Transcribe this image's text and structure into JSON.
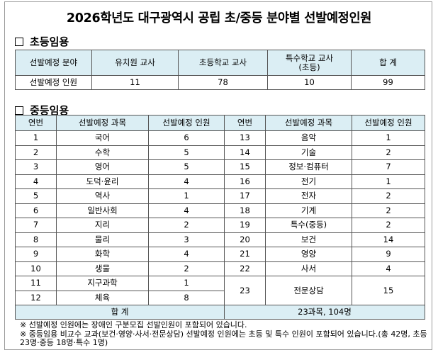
{
  "title": "2026학년도 대구광역시 공립 초/중등 분야별 선발예정인원",
  "elementary": {
    "heading": "초등임용",
    "header": [
      "선발예정 분야",
      "유치원 교사",
      "초등학교 교사",
      "특수학교 교사",
      "(초등)",
      "합 계"
    ],
    "row": [
      "선발예정 인원",
      "11",
      "78",
      "10",
      "99"
    ]
  },
  "secondary": {
    "heading": "중등임용",
    "header": [
      "연번",
      "선발예정 과목",
      "선발예정 인원",
      "연번",
      "선발예정 과목",
      "선발예정 인원"
    ],
    "left_rows": [
      [
        "1",
        "국어",
        "6"
      ],
      [
        "2",
        "수학",
        "5"
      ],
      [
        "3",
        "영어",
        "5"
      ],
      [
        "4",
        "도덕·윤리",
        "4"
      ],
      [
        "5",
        "역사",
        "1"
      ],
      [
        "6",
        "일반사회",
        "4"
      ],
      [
        "7",
        "지리",
        "2"
      ],
      [
        "8",
        "물리",
        "3"
      ],
      [
        "9",
        "화학",
        "4"
      ],
      [
        "10",
        "생물",
        "2"
      ],
      [
        "11",
        "지구과학",
        "1"
      ],
      [
        "12",
        "체육",
        "8"
      ]
    ],
    "right_rows": [
      [
        "13",
        "음악",
        "1"
      ],
      [
        "14",
        "기술",
        "2"
      ],
      [
        "15",
        "정보·컴퓨터",
        "7"
      ],
      [
        "16",
        "전기",
        "1"
      ],
      [
        "17",
        "전자",
        "2"
      ],
      [
        "18",
        "기계",
        "2"
      ],
      [
        "19",
        "특수(중등)",
        "2"
      ],
      [
        "20",
        "보건",
        "14"
      ],
      [
        "21",
        "영양",
        "9"
      ],
      [
        "22",
        "사서",
        "4"
      ],
      [
        "23",
        "전문상담",
        "15"
      ]
    ],
    "total_label": "합 계",
    "total_value": "23과목, 104명"
  },
  "notes": [
    "※ 선발예정 인원에는 장애인 구분모집 선발인원이 포함되어 있습니다.",
    "※ 중등임용 비교수 교과(보건·영양·사서·전문상담) 선발예정 인원에는 초등 및 특수 인원이 포함되어 있습니다.(총 42명, 초등 23명·중등 18명·특수 1명)"
  ],
  "colors": {
    "header_bg": "#dbeef4",
    "border": "#555555"
  }
}
